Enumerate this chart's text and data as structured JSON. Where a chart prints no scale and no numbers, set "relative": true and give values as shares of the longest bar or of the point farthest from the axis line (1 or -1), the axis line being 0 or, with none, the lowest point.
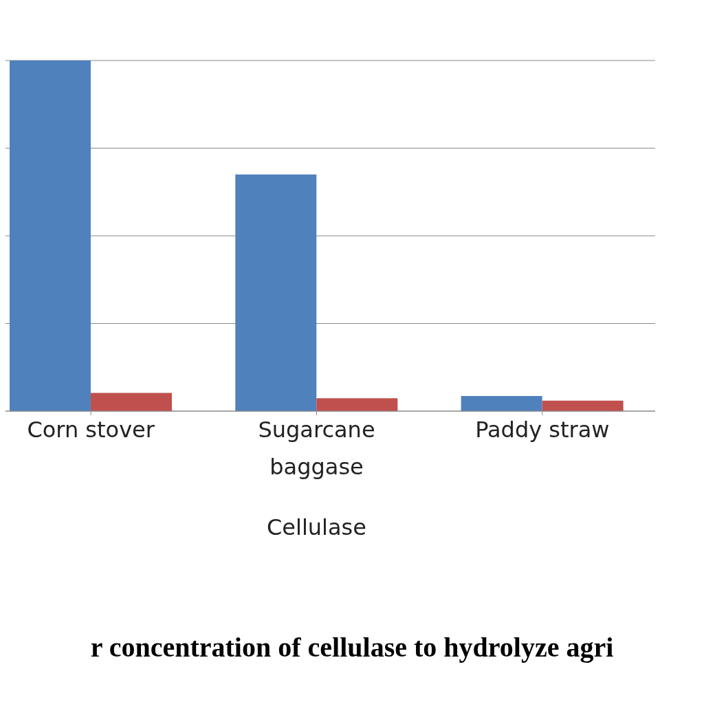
{
  "chart_data": {
    "type": "bar",
    "title": "r concentration of cellulase to hydrolyze agri",
    "xlabel": "Cellulase",
    "categories": [
      "Corn stover",
      "Sugarcane baggase",
      "Paddy straw"
    ],
    "relative": true,
    "grid": "y",
    "series": [
      {
        "color": "#4f81bd",
        "values": [
          1,
          0.675,
          0.043
        ]
      },
      {
        "color": "#c0504d",
        "values": [
          0.052,
          0.037,
          0.03
        ]
      }
    ]
  }
}
